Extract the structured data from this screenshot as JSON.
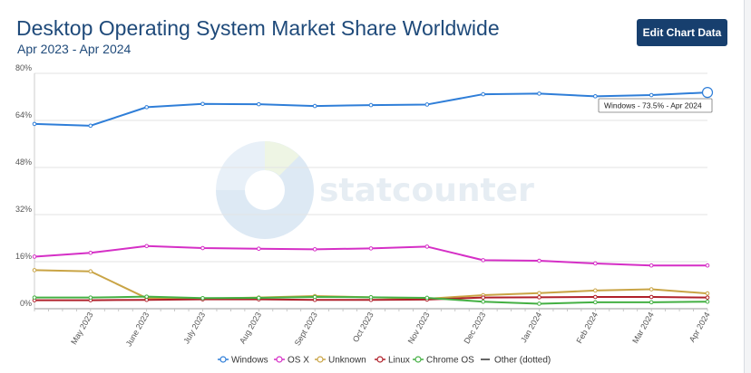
{
  "header": {
    "title": "Desktop Operating System Market Share Worldwide",
    "subtitle": "Apr 2023 - Apr 2024",
    "edit_button": "Edit Chart Data"
  },
  "watermark": {
    "text": "statcounter"
  },
  "tooltip": {
    "text": "Windows - 73.5% - Apr 2024"
  },
  "chart_data": {
    "type": "line",
    "x": [
      "Apr 2023",
      "May 2023",
      "June 2023",
      "July 2023",
      "Aug 2023",
      "Sept 2023",
      "Oct 2023",
      "Nov 2023",
      "Dec 2023",
      "Jan 2024",
      "Feb 2024",
      "Mar 2024",
      "Apr 2024"
    ],
    "xtick_labels": [
      "May 2023",
      "June 2023",
      "July 2023",
      "Aug 2023",
      "Sept 2023",
      "Oct 2023",
      "Nov 2023",
      "Dec 2023",
      "Jan 2024",
      "Feb 2024",
      "Mar 2024",
      "Apr 2024"
    ],
    "ylim": [
      0,
      80
    ],
    "yticks": [
      "0%",
      "16%",
      "32%",
      "48%",
      "64%",
      "80%"
    ],
    "grid": true,
    "legend_position": "bottom",
    "series": [
      {
        "name": "Windows",
        "color": "#2f7ed8",
        "values": [
          62.8,
          62.2,
          68.5,
          69.6,
          69.5,
          68.9,
          69.2,
          69.4,
          72.9,
          73.1,
          72.2,
          72.6,
          73.5
        ]
      },
      {
        "name": "OS X",
        "color": "#d52fc6",
        "values": [
          17.7,
          19.0,
          21.3,
          20.6,
          20.4,
          20.2,
          20.5,
          21.1,
          16.5,
          16.3,
          15.4,
          14.7,
          14.7
        ]
      },
      {
        "name": "Unknown",
        "color": "#c9a445",
        "values": [
          13.1,
          12.7,
          3.6,
          3.4,
          3.8,
          4.3,
          3.9,
          3.4,
          4.6,
          5.3,
          6.2,
          6.6,
          5.2
        ]
      },
      {
        "name": "Linux",
        "color": "#b0202a",
        "values": [
          2.9,
          2.9,
          3.0,
          3.2,
          3.2,
          3.0,
          3.0,
          3.1,
          3.8,
          3.9,
          4.0,
          4.0,
          3.8
        ]
      },
      {
        "name": "Chrome OS",
        "color": "#44b043",
        "values": [
          3.8,
          3.8,
          4.1,
          3.6,
          3.7,
          4.0,
          3.9,
          3.7,
          2.4,
          1.7,
          2.2,
          2.2,
          2.4
        ]
      }
    ],
    "legend": [
      {
        "name": "Windows",
        "color": "#2f7ed8",
        "style": "circle"
      },
      {
        "name": "OS X",
        "color": "#d52fc6",
        "style": "circle"
      },
      {
        "name": "Unknown",
        "color": "#c9a445",
        "style": "circle"
      },
      {
        "name": "Linux",
        "color": "#b0202a",
        "style": "circle"
      },
      {
        "name": "Chrome OS",
        "color": "#44b043",
        "style": "circle"
      },
      {
        "name": "Other (dotted)",
        "color": "#333333",
        "style": "line"
      }
    ]
  }
}
